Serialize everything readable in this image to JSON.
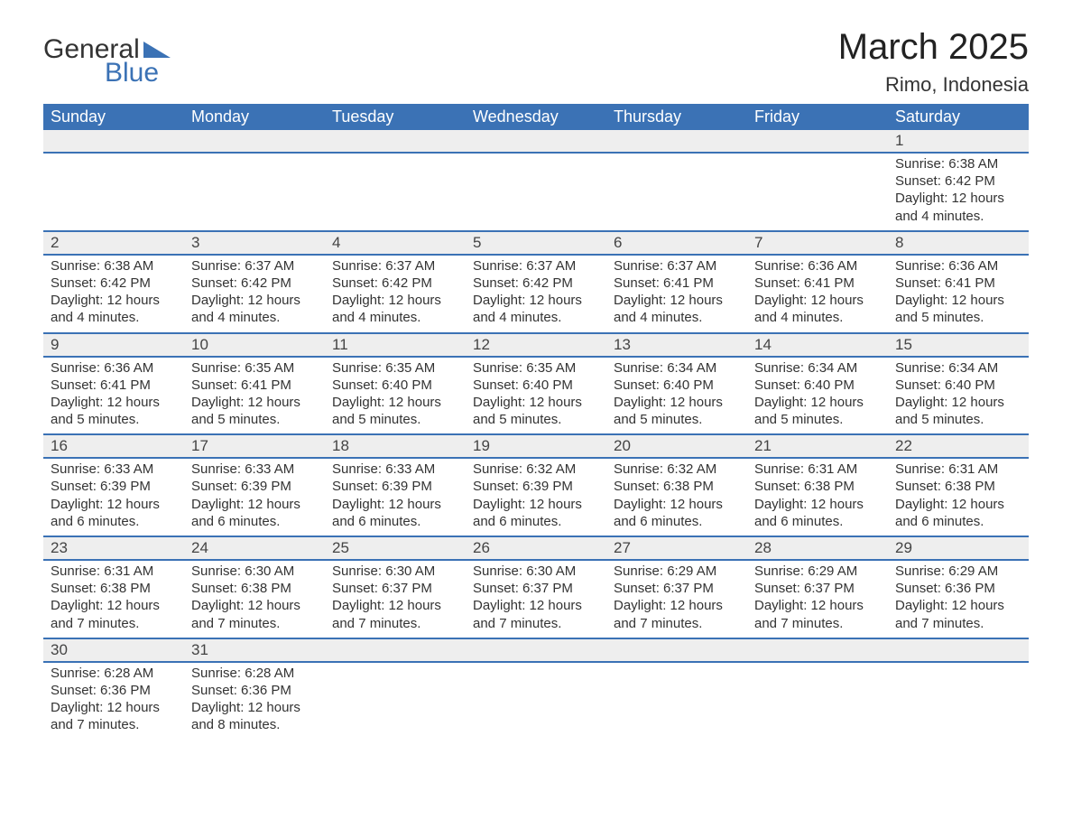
{
  "brand": {
    "word1": "General",
    "word2": "Blue",
    "triangle_color": "#3b72b5"
  },
  "title": {
    "month": "March 2025",
    "location": "Rimo, Indonesia"
  },
  "colors": {
    "header_bg": "#3b72b5",
    "header_text": "#ffffff",
    "row_divider": "#3b72b5",
    "daynum_bg": "#eeeeee",
    "body_text": "#333333",
    "page_bg": "#ffffff"
  },
  "typography": {
    "title_fontsize_pt": 30,
    "location_fontsize_pt": 16,
    "dayheader_fontsize_pt": 14,
    "body_fontsize_pt": 11,
    "font_family": "Arial"
  },
  "calendar": {
    "day_headers": [
      "Sunday",
      "Monday",
      "Tuesday",
      "Wednesday",
      "Thursday",
      "Friday",
      "Saturday"
    ],
    "weeks": [
      [
        null,
        null,
        null,
        null,
        null,
        null,
        {
          "n": "1",
          "sr": "Sunrise: 6:38 AM",
          "ss": "Sunset: 6:42 PM",
          "dl": "Daylight: 12 hours and 4 minutes."
        }
      ],
      [
        {
          "n": "2",
          "sr": "Sunrise: 6:38 AM",
          "ss": "Sunset: 6:42 PM",
          "dl": "Daylight: 12 hours and 4 minutes."
        },
        {
          "n": "3",
          "sr": "Sunrise: 6:37 AM",
          "ss": "Sunset: 6:42 PM",
          "dl": "Daylight: 12 hours and 4 minutes."
        },
        {
          "n": "4",
          "sr": "Sunrise: 6:37 AM",
          "ss": "Sunset: 6:42 PM",
          "dl": "Daylight: 12 hours and 4 minutes."
        },
        {
          "n": "5",
          "sr": "Sunrise: 6:37 AM",
          "ss": "Sunset: 6:42 PM",
          "dl": "Daylight: 12 hours and 4 minutes."
        },
        {
          "n": "6",
          "sr": "Sunrise: 6:37 AM",
          "ss": "Sunset: 6:41 PM",
          "dl": "Daylight: 12 hours and 4 minutes."
        },
        {
          "n": "7",
          "sr": "Sunrise: 6:36 AM",
          "ss": "Sunset: 6:41 PM",
          "dl": "Daylight: 12 hours and 4 minutes."
        },
        {
          "n": "8",
          "sr": "Sunrise: 6:36 AM",
          "ss": "Sunset: 6:41 PM",
          "dl": "Daylight: 12 hours and 5 minutes."
        }
      ],
      [
        {
          "n": "9",
          "sr": "Sunrise: 6:36 AM",
          "ss": "Sunset: 6:41 PM",
          "dl": "Daylight: 12 hours and 5 minutes."
        },
        {
          "n": "10",
          "sr": "Sunrise: 6:35 AM",
          "ss": "Sunset: 6:41 PM",
          "dl": "Daylight: 12 hours and 5 minutes."
        },
        {
          "n": "11",
          "sr": "Sunrise: 6:35 AM",
          "ss": "Sunset: 6:40 PM",
          "dl": "Daylight: 12 hours and 5 minutes."
        },
        {
          "n": "12",
          "sr": "Sunrise: 6:35 AM",
          "ss": "Sunset: 6:40 PM",
          "dl": "Daylight: 12 hours and 5 minutes."
        },
        {
          "n": "13",
          "sr": "Sunrise: 6:34 AM",
          "ss": "Sunset: 6:40 PM",
          "dl": "Daylight: 12 hours and 5 minutes."
        },
        {
          "n": "14",
          "sr": "Sunrise: 6:34 AM",
          "ss": "Sunset: 6:40 PM",
          "dl": "Daylight: 12 hours and 5 minutes."
        },
        {
          "n": "15",
          "sr": "Sunrise: 6:34 AM",
          "ss": "Sunset: 6:40 PM",
          "dl": "Daylight: 12 hours and 5 minutes."
        }
      ],
      [
        {
          "n": "16",
          "sr": "Sunrise: 6:33 AM",
          "ss": "Sunset: 6:39 PM",
          "dl": "Daylight: 12 hours and 6 minutes."
        },
        {
          "n": "17",
          "sr": "Sunrise: 6:33 AM",
          "ss": "Sunset: 6:39 PM",
          "dl": "Daylight: 12 hours and 6 minutes."
        },
        {
          "n": "18",
          "sr": "Sunrise: 6:33 AM",
          "ss": "Sunset: 6:39 PM",
          "dl": "Daylight: 12 hours and 6 minutes."
        },
        {
          "n": "19",
          "sr": "Sunrise: 6:32 AM",
          "ss": "Sunset: 6:39 PM",
          "dl": "Daylight: 12 hours and 6 minutes."
        },
        {
          "n": "20",
          "sr": "Sunrise: 6:32 AM",
          "ss": "Sunset: 6:38 PM",
          "dl": "Daylight: 12 hours and 6 minutes."
        },
        {
          "n": "21",
          "sr": "Sunrise: 6:31 AM",
          "ss": "Sunset: 6:38 PM",
          "dl": "Daylight: 12 hours and 6 minutes."
        },
        {
          "n": "22",
          "sr": "Sunrise: 6:31 AM",
          "ss": "Sunset: 6:38 PM",
          "dl": "Daylight: 12 hours and 6 minutes."
        }
      ],
      [
        {
          "n": "23",
          "sr": "Sunrise: 6:31 AM",
          "ss": "Sunset: 6:38 PM",
          "dl": "Daylight: 12 hours and 7 minutes."
        },
        {
          "n": "24",
          "sr": "Sunrise: 6:30 AM",
          "ss": "Sunset: 6:38 PM",
          "dl": "Daylight: 12 hours and 7 minutes."
        },
        {
          "n": "25",
          "sr": "Sunrise: 6:30 AM",
          "ss": "Sunset: 6:37 PM",
          "dl": "Daylight: 12 hours and 7 minutes."
        },
        {
          "n": "26",
          "sr": "Sunrise: 6:30 AM",
          "ss": "Sunset: 6:37 PM",
          "dl": "Daylight: 12 hours and 7 minutes."
        },
        {
          "n": "27",
          "sr": "Sunrise: 6:29 AM",
          "ss": "Sunset: 6:37 PM",
          "dl": "Daylight: 12 hours and 7 minutes."
        },
        {
          "n": "28",
          "sr": "Sunrise: 6:29 AM",
          "ss": "Sunset: 6:37 PM",
          "dl": "Daylight: 12 hours and 7 minutes."
        },
        {
          "n": "29",
          "sr": "Sunrise: 6:29 AM",
          "ss": "Sunset: 6:36 PM",
          "dl": "Daylight: 12 hours and 7 minutes."
        }
      ],
      [
        {
          "n": "30",
          "sr": "Sunrise: 6:28 AM",
          "ss": "Sunset: 6:36 PM",
          "dl": "Daylight: 12 hours and 7 minutes."
        },
        {
          "n": "31",
          "sr": "Sunrise: 6:28 AM",
          "ss": "Sunset: 6:36 PM",
          "dl": "Daylight: 12 hours and 8 minutes."
        },
        null,
        null,
        null,
        null,
        null
      ]
    ]
  }
}
